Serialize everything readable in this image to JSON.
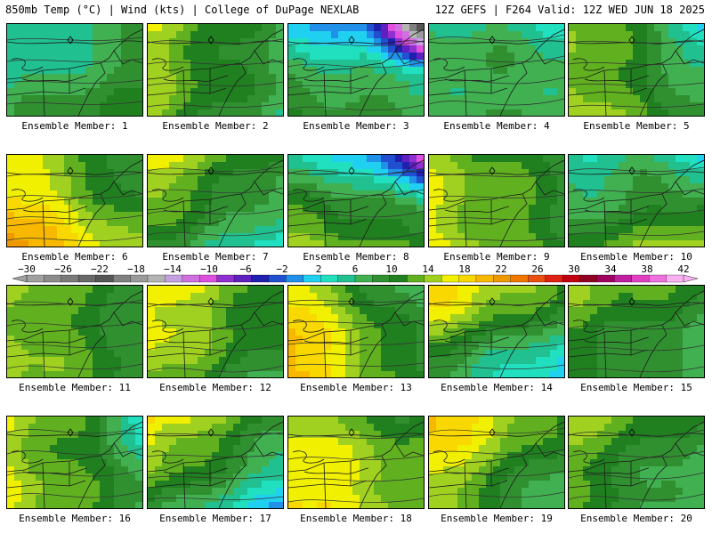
{
  "header": {
    "left": "850mb Temp (°C) | Wind (kts) | College of DuPage NEXLAB",
    "right": "12Z GEFS | F264 Valid: 12Z WED JUN 18 2025"
  },
  "members": [
    {
      "label": "Ensemble Member: 1",
      "base": 9,
      "grad": [
        -2,
        2,
        0
      ]
    },
    {
      "label": "Ensemble Member: 2",
      "base": 13,
      "grad": [
        4,
        -1,
        0
      ]
    },
    {
      "label": "Ensemble Member: 3",
      "base": 7,
      "grad": [
        1,
        5,
        -8
      ]
    },
    {
      "label": "Ensemble Member: 4",
      "base": 9,
      "grad": [
        0,
        1,
        -1
      ]
    },
    {
      "label": "Ensemble Member: 5",
      "base": 13,
      "grad": [
        4,
        1,
        -2
      ]
    },
    {
      "label": "Ensemble Member: 6",
      "base": 17,
      "grad": [
        5,
        3,
        0
      ]
    },
    {
      "label": "Ensemble Member: 7",
      "base": 12,
      "grad": [
        4,
        -4,
        0
      ]
    },
    {
      "label": "Ensemble Member: 8",
      "base": 10,
      "grad": [
        2,
        6,
        -4
      ]
    },
    {
      "label": "Ensemble Member: 9",
      "base": 15,
      "grad": [
        3,
        1,
        0
      ]
    },
    {
      "label": "Ensemble Member: 10",
      "base": 11,
      "grad": [
        -2,
        4,
        -2
      ]
    },
    {
      "label": "Ensemble Member: 11",
      "base": 14,
      "grad": [
        3,
        0,
        0
      ]
    },
    {
      "label": "Ensemble Member: 12",
      "base": 15,
      "grad": [
        4,
        -2,
        0
      ]
    },
    {
      "label": "Ensemble Member: 13",
      "base": 16,
      "grad": [
        6,
        2,
        0
      ]
    },
    {
      "label": "Ensemble Member: 14",
      "base": 12,
      "grad": [
        4,
        -6,
        0
      ]
    },
    {
      "label": "Ensemble Member: 15",
      "base": 12,
      "grad": [
        2,
        -2,
        0
      ]
    },
    {
      "label": "Ensemble Member: 16",
      "base": 14,
      "grad": [
        4,
        0,
        -2
      ]
    },
    {
      "label": "Ensemble Member: 17",
      "base": 12,
      "grad": [
        5,
        -5,
        0
      ]
    },
    {
      "label": "Ensemble Member: 18",
      "base": 17,
      "grad": [
        3,
        2,
        0
      ]
    },
    {
      "label": "Ensemble Member: 19",
      "base": 15,
      "grad": [
        5,
        -3,
        0
      ]
    },
    {
      "label": "Ensemble Member: 20",
      "base": 12,
      "grad": [
        3,
        -2,
        0
      ]
    }
  ],
  "colorbar": {
    "ticks": [
      "-30",
      "-26",
      "-22",
      "-18",
      "-14",
      "-10",
      "-6",
      "-2",
      "2",
      "6",
      "10",
      "14",
      "18",
      "22",
      "26",
      "30",
      "34",
      "38",
      "42"
    ],
    "min": -30,
    "max": 42,
    "step": 2,
    "colors": [
      "#a0a0a0",
      "#8c8c8c",
      "#7a7a7a",
      "#686868",
      "#565656",
      "#808080",
      "#9a9a9a",
      "#b4b4b4",
      "#c4a0e0",
      "#d070e0",
      "#e050e0",
      "#9030d0",
      "#6020c0",
      "#2020b0",
      "#2050d0",
      "#2090e8",
      "#20d0f0",
      "#20e0c0",
      "#20c090",
      "#40b050",
      "#309030",
      "#208020",
      "#60b020",
      "#a0d020",
      "#f0f000",
      "#f8d800",
      "#f8b800",
      "#f09800",
      "#f07800",
      "#e85010",
      "#e02010",
      "#c00010",
      "#900020",
      "#a00060",
      "#c020a0",
      "#e040c0",
      "#f070e0",
      "#f8b0f0"
    ]
  }
}
